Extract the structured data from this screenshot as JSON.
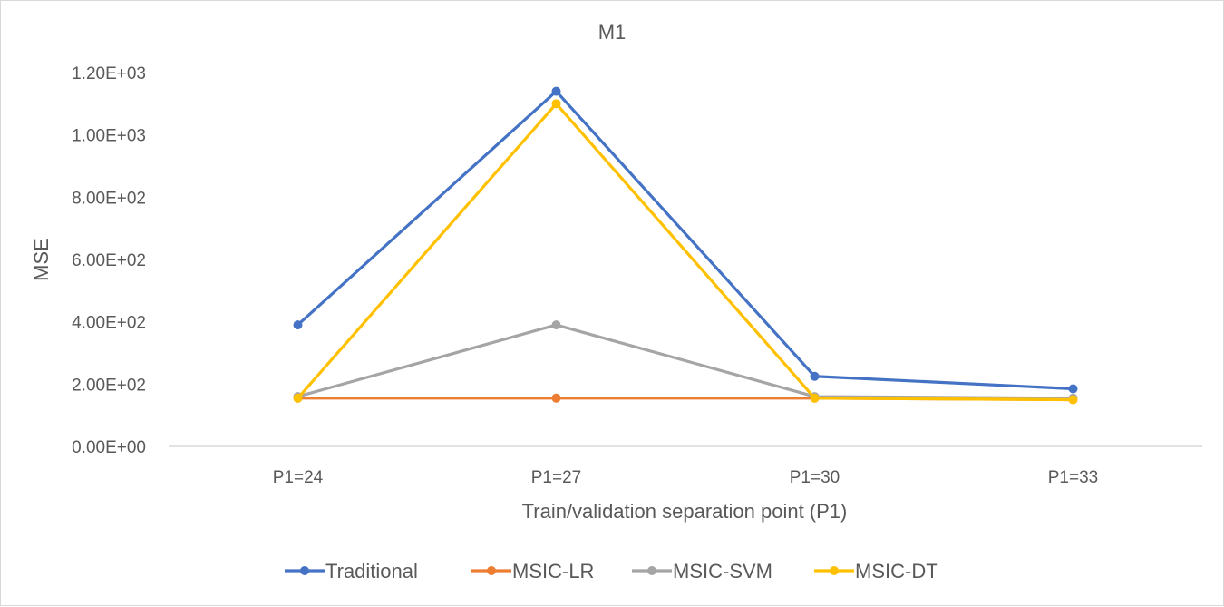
{
  "chart_data": {
    "type": "line",
    "title": "M1",
    "xlabel": "Train/validation separation point (P1)",
    "ylabel": "MSE",
    "categories": [
      "P1=24",
      "P1=27",
      "P1=30",
      "P1=33"
    ],
    "ylim": [
      0,
      1200
    ],
    "yticks": [
      0,
      200,
      400,
      600,
      800,
      1000,
      1200
    ],
    "ytick_labels": [
      "0.00E+00",
      "2.00E+02",
      "4.00E+02",
      "6.00E+02",
      "8.00E+02",
      "1.00E+03",
      "1.20E+03"
    ],
    "grid": false,
    "legend_position": "bottom",
    "series": [
      {
        "name": "Traditional",
        "color": "#4472c4",
        "values": [
          390,
          1140,
          225,
          185
        ]
      },
      {
        "name": "MSIC-LR",
        "color": "#ed7d31",
        "values": [
          155,
          155,
          155,
          150
        ]
      },
      {
        "name": "MSIC-SVM",
        "color": "#a5a5a5",
        "values": [
          160,
          390,
          160,
          155
        ]
      },
      {
        "name": "MSIC-DT",
        "color": "#ffc000",
        "values": [
          155,
          1100,
          155,
          150
        ]
      }
    ]
  }
}
